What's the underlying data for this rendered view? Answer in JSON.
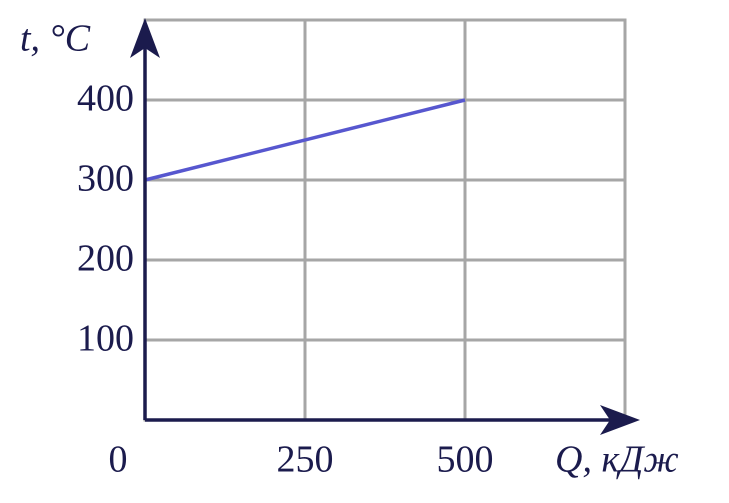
{
  "chart_data": {
    "type": "line",
    "x_label": "Q, кДж",
    "y_label": "t, °C",
    "x": [
      0,
      500
    ],
    "series": [
      {
        "color": "#5757cf",
        "values": [
          300,
          400
        ]
      }
    ],
    "xlim": [
      0,
      750
    ],
    "ylim": [
      0,
      500
    ],
    "xticks": [
      0,
      250,
      500
    ],
    "yticks": [
      100,
      200,
      300,
      400
    ],
    "grid": true
  }
}
